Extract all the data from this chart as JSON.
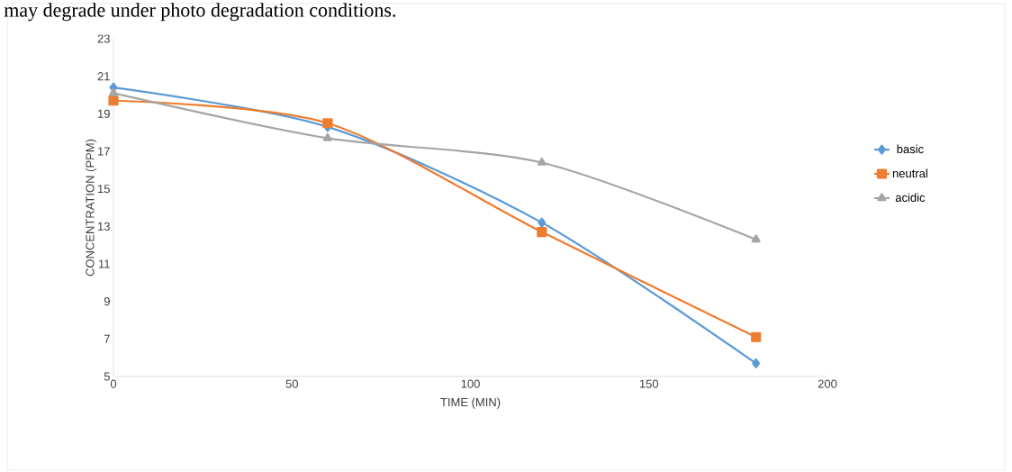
{
  "chart_data": {
    "type": "line",
    "xlabel": "TIME (MIN)",
    "ylabel": "CONCENTRATION (PPM)",
    "annotations": [
      "may degrade under photo degradation conditions."
    ],
    "x": [
      0,
      60,
      120,
      180
    ],
    "series": [
      {
        "name": "basic",
        "color": "#5b9bd5",
        "marker": "diamond",
        "values": [
          20.4,
          18.3,
          13.2,
          5.7
        ]
      },
      {
        "name": "neutral",
        "color": "#ed7d31",
        "marker": "square",
        "values": [
          19.7,
          18.5,
          12.7,
          7.1
        ]
      },
      {
        "name": "acidic",
        "color": "#a5a5a5",
        "marker": "triangle",
        "values": [
          20.1,
          17.7,
          16.4,
          12.3
        ]
      }
    ],
    "xlim": [
      0,
      200
    ],
    "xticks": [
      0,
      50,
      100,
      150,
      200
    ],
    "ylim": [
      5,
      23
    ],
    "yticks": [
      5,
      7,
      9,
      11,
      13,
      15,
      17,
      19,
      21,
      23
    ],
    "grid": false,
    "legend": "right",
    "line_style": "solid"
  }
}
